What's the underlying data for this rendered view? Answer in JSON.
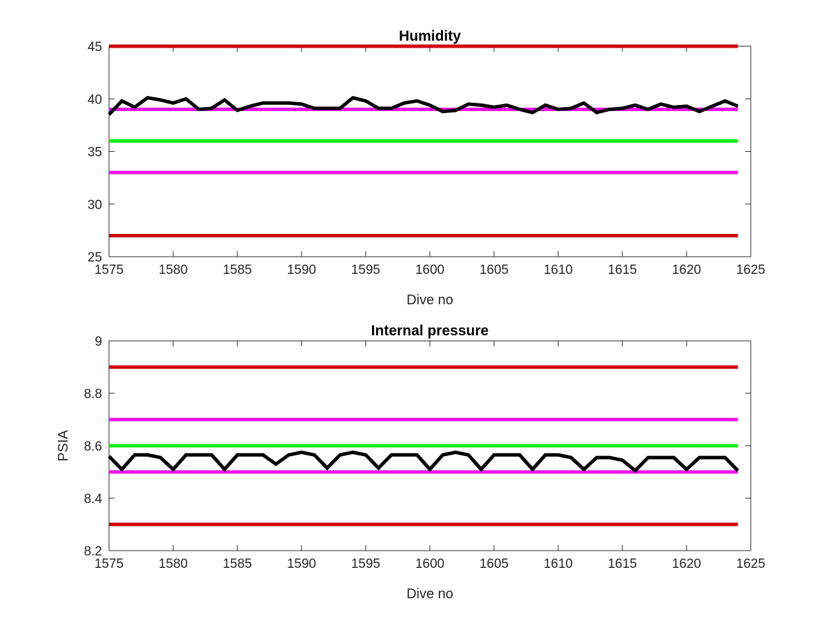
{
  "chart_data": [
    {
      "type": "line",
      "title": "Humidity",
      "xlabel": "Dive no",
      "ylabel": "",
      "xlim": [
        1575,
        1625
      ],
      "ylim": [
        25,
        45
      ],
      "xticks": [
        "1575",
        "1580",
        "1585",
        "1590",
        "1595",
        "1600",
        "1605",
        "1610",
        "1615",
        "1620",
        "1625"
      ],
      "yticks": [
        "25",
        "30",
        "35",
        "40",
        "45"
      ],
      "grid": false,
      "reference_lines": [
        {
          "value": 45,
          "color": "#cc0000"
        },
        {
          "value": 39,
          "color": "#ee11ee"
        },
        {
          "value": 36,
          "color": "#11ee11"
        },
        {
          "value": 33,
          "color": "#ee11ee"
        },
        {
          "value": 27,
          "color": "#cc0000"
        }
      ],
      "series": [
        {
          "color": "#000000",
          "x": [
            1575,
            1576,
            1577,
            1578,
            1579,
            1580,
            1581,
            1582,
            1583,
            1584,
            1585,
            1586,
            1587,
            1588,
            1589,
            1590,
            1591,
            1592,
            1593,
            1594,
            1595,
            1596,
            1597,
            1598,
            1599,
            1600,
            1601,
            1602,
            1603,
            1604,
            1605,
            1606,
            1607,
            1608,
            1609,
            1610,
            1611,
            1612,
            1613,
            1614,
            1615,
            1616,
            1617,
            1618,
            1619,
            1620,
            1621,
            1622,
            1623,
            1624
          ],
          "y": [
            38.5,
            39.8,
            39.2,
            40.1,
            39.9,
            39.6,
            40.0,
            39.0,
            39.1,
            39.9,
            38.9,
            39.3,
            39.6,
            39.6,
            39.6,
            39.5,
            39.1,
            39.1,
            39.1,
            40.1,
            39.8,
            39.1,
            39.1,
            39.6,
            39.8,
            39.4,
            38.8,
            38.9,
            39.5,
            39.4,
            39.2,
            39.4,
            39.0,
            38.7,
            39.4,
            39.0,
            39.1,
            39.6,
            38.7,
            39.0,
            39.1,
            39.4,
            39.0,
            39.5,
            39.2,
            39.3,
            38.8,
            39.3,
            39.8,
            39.3
          ]
        }
      ]
    },
    {
      "type": "line",
      "title": "Internal pressure",
      "xlabel": "Dive no",
      "ylabel": "PSIA",
      "xlim": [
        1575,
        1625
      ],
      "ylim": [
        8.2,
        9
      ],
      "xticks": [
        "1575",
        "1580",
        "1585",
        "1590",
        "1595",
        "1600",
        "1605",
        "1610",
        "1615",
        "1620",
        "1625"
      ],
      "yticks": [
        "8.2",
        "8.4",
        "8.6",
        "8.8",
        "9"
      ],
      "grid": false,
      "reference_lines": [
        {
          "value": 8.9,
          "color": "#cc0000"
        },
        {
          "value": 8.7,
          "color": "#ee11ee"
        },
        {
          "value": 8.6,
          "color": "#11ee11"
        },
        {
          "value": 8.5,
          "color": "#ee11ee"
        },
        {
          "value": 8.3,
          "color": "#cc0000"
        }
      ],
      "series": [
        {
          "color": "#000000",
          "x": [
            1575,
            1576,
            1577,
            1578,
            1579,
            1580,
            1581,
            1582,
            1583,
            1584,
            1585,
            1586,
            1587,
            1588,
            1589,
            1590,
            1591,
            1592,
            1593,
            1594,
            1595,
            1596,
            1597,
            1598,
            1599,
            1600,
            1601,
            1602,
            1603,
            1604,
            1605,
            1606,
            1607,
            1608,
            1609,
            1610,
            1611,
            1612,
            1613,
            1614,
            1615,
            1616,
            1617,
            1618,
            1619,
            1620,
            1621,
            1622,
            1623,
            1624
          ],
          "y": [
            8.56,
            8.51,
            8.565,
            8.565,
            8.555,
            8.51,
            8.565,
            8.565,
            8.565,
            8.51,
            8.565,
            8.565,
            8.565,
            8.53,
            8.565,
            8.575,
            8.565,
            8.515,
            8.565,
            8.575,
            8.565,
            8.515,
            8.565,
            8.565,
            8.565,
            8.51,
            8.565,
            8.575,
            8.565,
            8.51,
            8.565,
            8.565,
            8.565,
            8.51,
            8.565,
            8.565,
            8.555,
            8.51,
            8.555,
            8.555,
            8.545,
            8.505,
            8.555,
            8.555,
            8.555,
            8.51,
            8.555,
            8.555,
            8.555,
            8.505
          ]
        }
      ]
    }
  ]
}
